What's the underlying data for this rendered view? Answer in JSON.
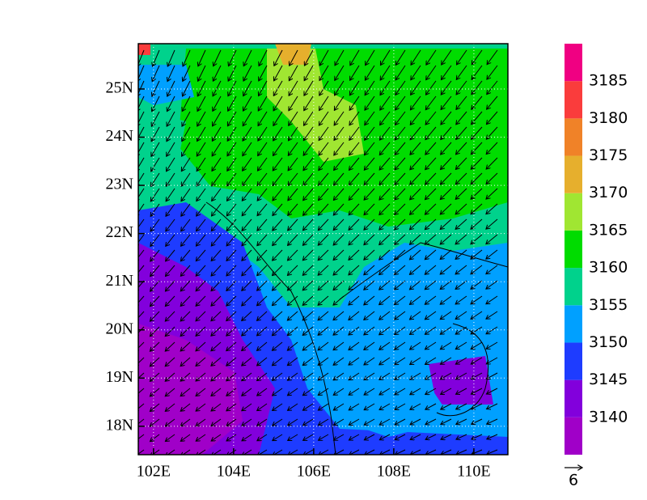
{
  "map": {
    "xlim": [
      101.62,
      110.85
    ],
    "ylim": [
      17.41,
      25.94
    ],
    "xticks": [
      {
        "value": 102,
        "label": "102E"
      },
      {
        "value": 104,
        "label": "104E"
      },
      {
        "value": 106,
        "label": "106E"
      },
      {
        "value": 108,
        "label": "108E"
      },
      {
        "value": 110,
        "label": "110E"
      }
    ],
    "yticks": [
      {
        "value": 18,
        "label": "18N"
      },
      {
        "value": 19,
        "label": "19N"
      },
      {
        "value": 20,
        "label": "20N"
      },
      {
        "value": 21,
        "label": "21N"
      },
      {
        "value": 22,
        "label": "22N"
      },
      {
        "value": 23,
        "label": "23N"
      },
      {
        "value": 24,
        "label": "24N"
      },
      {
        "value": 25,
        "label": "25N"
      }
    ],
    "colorbar": {
      "levels": [
        3140,
        3145,
        3150,
        3155,
        3160,
        3165,
        3170,
        3175,
        3180,
        3185
      ],
      "colors": [
        "#a000c8",
        "#8200dc",
        "#1e3cff",
        "#00a0ff",
        "#00d28c",
        "#00dc00",
        "#a0e632",
        "#e6af2d",
        "#f08228",
        "#fa3c3c",
        "#f00082"
      ]
    },
    "reference_vector": {
      "label": "6"
    }
  }
}
